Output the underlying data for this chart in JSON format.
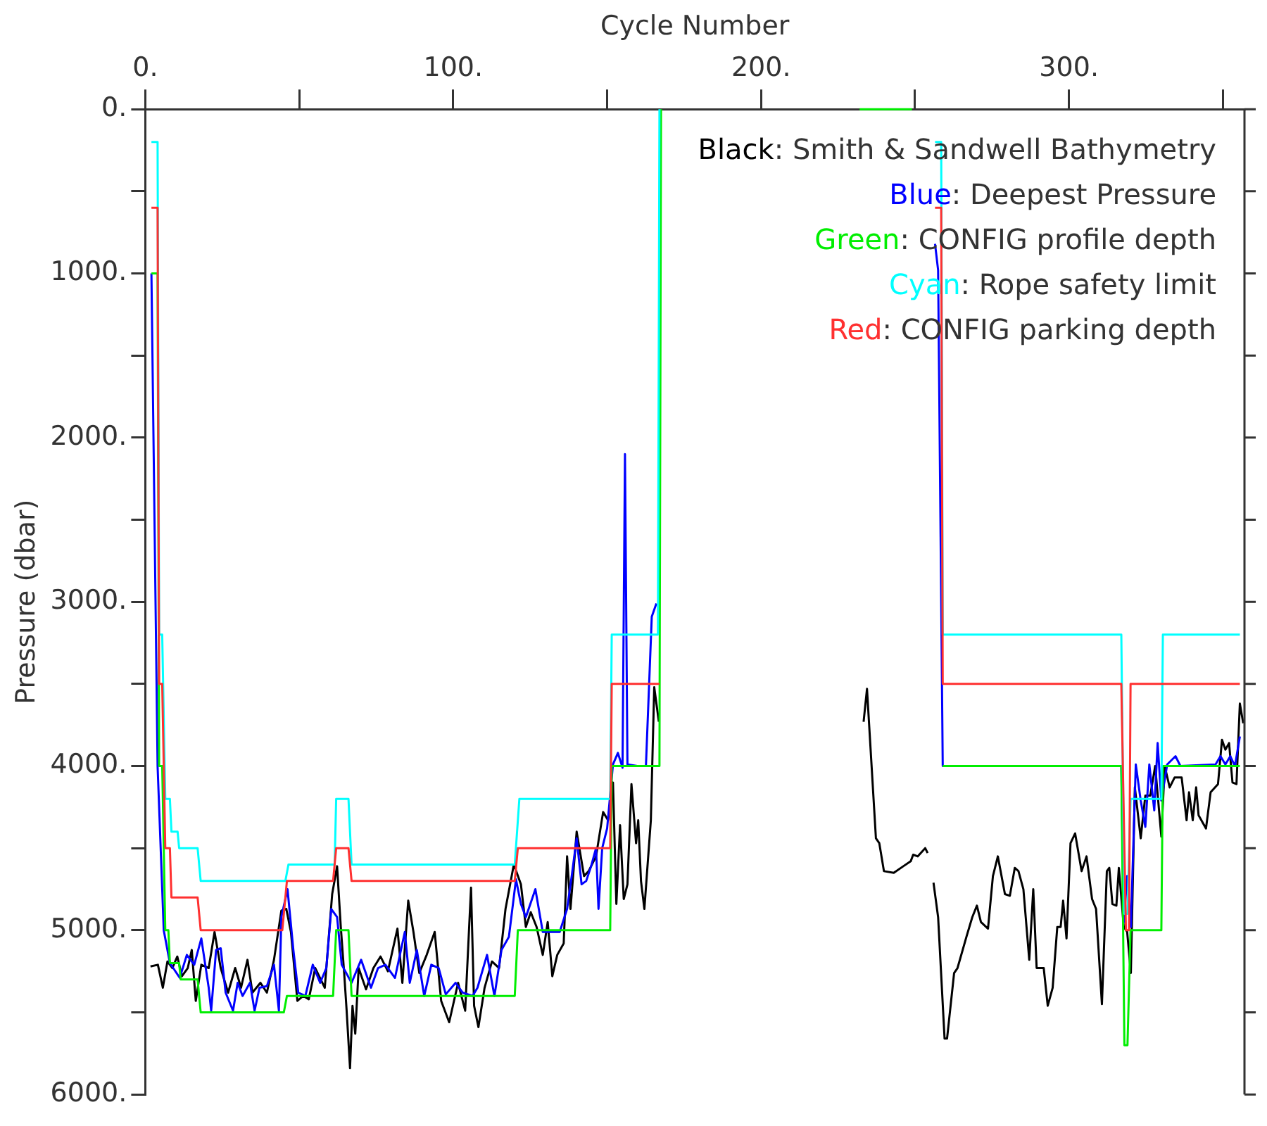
{
  "chart_data": {
    "type": "line",
    "xlabel": "Cycle Number",
    "ylabel": "Pressure (dbar)",
    "xlim": [
      0,
      357
    ],
    "xticks": [
      {
        "value": 0,
        "label": "0."
      },
      {
        "value": 50,
        "label": null
      },
      {
        "value": 100,
        "label": "100."
      },
      {
        "value": 150,
        "label": null
      },
      {
        "value": 200,
        "label": "200."
      },
      {
        "value": 250,
        "label": null
      },
      {
        "value": 300,
        "label": "300."
      },
      {
        "value": 350,
        "label": null
      }
    ],
    "ylim": [
      6000,
      0
    ],
    "yticks": [
      {
        "value": 0,
        "label": "0."
      },
      {
        "value": 500,
        "label": null
      },
      {
        "value": 1000,
        "label": "1000."
      },
      {
        "value": 1500,
        "label": null
      },
      {
        "value": 2000,
        "label": "2000."
      },
      {
        "value": 2500,
        "label": null
      },
      {
        "value": 3000,
        "label": "3000."
      },
      {
        "value": 3500,
        "label": null
      },
      {
        "value": 4000,
        "label": "4000."
      },
      {
        "value": 4500,
        "label": null
      },
      {
        "value": 5000,
        "label": "5000."
      },
      {
        "value": 5500,
        "label": null
      },
      {
        "value": 6000,
        "label": "6000."
      }
    ],
    "grid": false,
    "legend": "top right",
    "marker": "none",
    "line_style": "solid",
    "series": [
      {
        "name": "Black: Smith & Sandwell Bathymetry",
        "color": "#000000",
        "x": [
          1.7,
          4.1,
          5.7,
          7.2,
          8.8,
          10.4,
          11.9,
          13.8,
          15.1,
          16.4,
          18.2,
          20.6,
          22.5,
          24.5,
          26.9,
          29.2,
          31.1,
          33.2,
          34.8,
          37.4,
          39.5,
          41.8,
          44.2,
          45.8,
          47.3,
          49.4,
          51.3,
          53.1,
          55.2,
          58.3,
          60.7,
          62.3,
          63.5,
          64.6,
          65.4,
          66.5,
          67.3,
          68.2,
          69.3,
          71.7,
          74.1,
          76.4,
          78.8,
          81.9,
          83.5,
          85.4,
          87.1,
          89.0,
          91.4,
          94.0,
          96.1,
          98.7,
          101.6,
          103.9,
          105.8,
          106.8,
          108.2,
          110.2,
          112.6,
          114.9,
          117.0,
          119.7,
          122.0,
          123.6,
          125.2,
          127.1,
          129.1,
          130.7,
          132.2,
          133.8,
          135.9,
          137.0,
          138.1,
          140.1,
          142.5,
          144.0,
          146.4,
          148.7,
          150.3,
          151.9,
          153.0,
          154.2,
          155.4,
          156.6,
          157.9,
          159.4,
          160.1,
          161.0,
          162.1,
          164.2,
          165.3,
          166.8,
          200,
          233.3,
          234.4,
          237.3,
          238.4,
          239.9,
          243.1,
          246.2,
          248.6,
          249.4,
          250.9,
          253.3,
          254.1,
          255,
          256.0,
          257.5,
          259.6,
          260.4,
          262.7,
          263.8,
          266.7,
          268.6,
          270.1,
          271.4,
          273.7,
          275.3,
          276.9,
          279.2,
          280.8,
          282.4,
          283.6,
          285.2,
          287.1,
          288.4,
          289.5,
          291.8,
          293.1,
          294.7,
          296.2,
          297.3,
          298.1,
          299.2,
          300.5,
          302.0,
          304.1,
          305.7,
          307.5,
          308.8,
          310.7,
          312.3,
          313.1,
          314.1,
          315.4,
          316.2,
          317.8,
          318.9,
          320.1,
          321.4,
          323.3,
          324.8,
          326.4,
          328.0,
          330.0,
          331.1,
          332.7,
          334.3,
          336.6,
          338.2,
          339.0,
          340.2,
          341.3,
          342.1,
          344.5,
          346.0,
          348.4,
          349.7,
          350.8,
          352.0,
          353.1,
          354.4,
          355.5,
          356.6
        ],
        "values": [
          5220,
          5210,
          5350,
          5190,
          5230,
          5160,
          5280,
          5230,
          5120,
          5430,
          5210,
          5230,
          5010,
          5230,
          5380,
          5230,
          5350,
          5180,
          5380,
          5320,
          5380,
          5180,
          4880,
          4870,
          5010,
          5430,
          5400,
          5420,
          5230,
          5350,
          4780,
          4610,
          4980,
          5260,
          5490,
          5840,
          5460,
          5630,
          5230,
          5360,
          5230,
          5160,
          5250,
          4990,
          5320,
          4820,
          5010,
          5260,
          5150,
          5010,
          5430,
          5560,
          5320,
          5490,
          4740,
          5460,
          5590,
          5350,
          5190,
          5230,
          4870,
          4600,
          4720,
          4980,
          4890,
          4980,
          5150,
          4950,
          5280,
          5150,
          5080,
          4550,
          4870,
          4400,
          4670,
          4640,
          4550,
          4280,
          4330,
          4100,
          4840,
          4360,
          4810,
          4720,
          4110,
          4470,
          4330,
          4700,
          4870,
          4330,
          3520,
          3730,
          null,
          3730,
          3530,
          4440,
          4470,
          4640,
          4650,
          4610,
          4580,
          4540,
          4550,
          4500,
          4530,
          null,
          4710,
          4920,
          5660,
          5660,
          5260,
          5230,
          5040,
          4920,
          4850,
          4950,
          4990,
          4670,
          4550,
          4780,
          4790,
          4620,
          4640,
          4750,
          5180,
          4750,
          5230,
          5230,
          5460,
          5350,
          4980,
          4980,
          4820,
          5050,
          4470,
          4410,
          4640,
          4550,
          4810,
          4870,
          5450,
          4640,
          4620,
          4840,
          4850,
          4620,
          4980,
          5010,
          5260,
          4130,
          4440,
          4180,
          4180,
          4000,
          4430,
          4000,
          4130,
          4070,
          4070,
          4330,
          4160,
          4330,
          4130,
          4300,
          4380,
          4160,
          4110,
          3840,
          3900,
          3860,
          4100,
          4110,
          3620,
          3740
        ]
      },
      {
        "name": "Blue: Deepest Pressure",
        "color": "#0000ff",
        "x": [
          2,
          4,
          6,
          8,
          11.2,
          13.5,
          15.9,
          18.2,
          20.6,
          21.4,
          23.0,
          24.5,
          26.1,
          28.5,
          30.0,
          31.6,
          34.0,
          35.5,
          37.1,
          39.5,
          41.8,
          43.4,
          44.2,
          46.2,
          48.1,
          49.7,
          52.0,
          54.4,
          56.8,
          58.8,
          60.4,
          62.3,
          63.8,
          67.0,
          70.1,
          73.3,
          75.6,
          78.0,
          81.1,
          84.3,
          85.9,
          88.2,
          90.6,
          92.9,
          95.3,
          97.6,
          100.8,
          103.1,
          106.3,
          107.9,
          111.0,
          113.4,
          115.7,
          118.1,
          120.4,
          122.0,
          123.6,
          126.7,
          129.1,
          131.5,
          134.6,
          137.0,
          138.5,
          140.1,
          141.7,
          143.2,
          144.8,
          146.4,
          147.2,
          148.4,
          150.0,
          151.9,
          153.5,
          155.0,
          155.8,
          156.6,
          159.8,
          162.6,
          164.5,
          166.0,
          200,
          256.5,
          257.5,
          259,
          317,
          317.8,
          318.9,
          320.1,
          321.7,
          323.3,
          324.8,
          326.1,
          327.7,
          328.8,
          330.0,
          331.9,
          334.6,
          336.2,
          347.6,
          349.2,
          350.8,
          352.4,
          353.9,
          355.5
        ],
        "values": [
          1000,
          4000,
          5000,
          5200,
          5290,
          5150,
          5210,
          5050,
          5350,
          5490,
          5120,
          5110,
          5380,
          5490,
          5320,
          5400,
          5320,
          5490,
          5350,
          5340,
          5210,
          5490,
          4920,
          4750,
          5120,
          5380,
          5400,
          5210,
          5320,
          5230,
          4870,
          4920,
          5210,
          5320,
          5180,
          5350,
          5230,
          5210,
          5290,
          5010,
          5320,
          5120,
          5400,
          5210,
          5230,
          5390,
          5320,
          5380,
          5400,
          5350,
          5150,
          5400,
          5120,
          5040,
          4690,
          4840,
          4920,
          4750,
          5010,
          5010,
          5010,
          4870,
          4670,
          4440,
          4720,
          4700,
          4610,
          4500,
          4870,
          4500,
          4380,
          3990,
          3920,
          4010,
          2100,
          3990,
          4000,
          4000,
          3090,
          3010,
          null,
          820,
          980,
          4000,
          4000,
          4950,
          4670,
          4980,
          3990,
          4210,
          4370,
          3990,
          4270,
          3860,
          4210,
          3990,
          3940,
          4000,
          3990,
          3940,
          3990,
          3940,
          4000,
          3820
        ]
      },
      {
        "name": "Green: CONFIG profile depth",
        "color": "#00ee00",
        "x": [
          2,
          4,
          4.5,
          5.5,
          6.5,
          7.5,
          8,
          11,
          11.5,
          17,
          18,
          45,
          46,
          61,
          62,
          66,
          67,
          120,
          121,
          151,
          151.5,
          167,
          167.5,
          200,
          232,
          249,
          254,
          259,
          317,
          318,
          319,
          320,
          330,
          330.5,
          355.5
        ],
        "values": [
          1000,
          1000,
          4000,
          4000,
          5000,
          5000,
          5200,
          5200,
          5300,
          5300,
          5500,
          5500,
          5400,
          5400,
          5000,
          5000,
          5400,
          5400,
          5000,
          5000,
          4000,
          4000,
          0,
          null,
          0,
          0,
          null,
          4000,
          4000,
          5700,
          5700,
          5000,
          5000,
          4000,
          4000
        ]
      },
      {
        "name": "Cyan: Rope safety limit",
        "color": "#00ffff",
        "x": [
          2,
          4,
          4.5,
          5.5,
          6.5,
          8,
          8.5,
          10.5,
          11,
          17,
          18,
          45.5,
          46.5,
          61.5,
          62,
          66,
          67,
          120,
          121.5,
          151,
          151.5,
          166.5,
          167,
          200,
          256.5,
          258.5,
          259,
          317,
          318,
          319,
          320,
          330,
          330.5,
          355.5
        ],
        "values": [
          200,
          200,
          3200,
          3200,
          4200,
          4200,
          4400,
          4400,
          4500,
          4500,
          4700,
          4700,
          4600,
          4600,
          4200,
          4200,
          4600,
          4600,
          4200,
          4200,
          3200,
          3200,
          0,
          null,
          200,
          200,
          3200,
          3200,
          4900,
          4900,
          4200,
          4200,
          3200,
          3200
        ]
      },
      {
        "name": "Red: CONFIG parking depth",
        "color": "#ff3030",
        "x": [
          2,
          4,
          4.5,
          5.5,
          6.5,
          8,
          8.5,
          17,
          18,
          44.5,
          46,
          61,
          62,
          66,
          67,
          120,
          121,
          151,
          151.5,
          167,
          200,
          256.5,
          258.5,
          259,
          317,
          318.5,
          319.5,
          320,
          355.5
        ],
        "values": [
          600,
          600,
          3500,
          3500,
          4500,
          4500,
          4800,
          4800,
          5000,
          5000,
          4700,
          4700,
          4500,
          4500,
          4700,
          4700,
          4500,
          4500,
          3500,
          3500,
          null,
          600,
          600,
          3500,
          3500,
          5000,
          5000,
          3500,
          3500
        ]
      }
    ]
  }
}
